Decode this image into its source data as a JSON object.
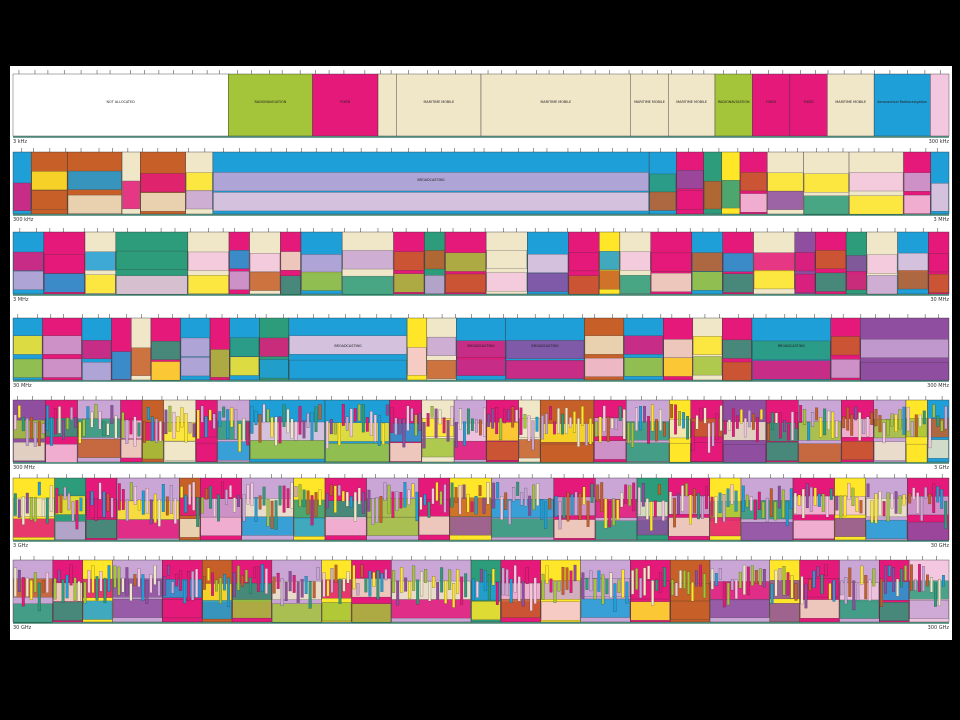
{
  "chart_data": {
    "type": "bar",
    "colors": {
      "FIXED": "#e5197a",
      "MOBILE": "#f0e6c8",
      "MARITIME MOBILE": "#1f9fd7",
      "AERONAUTICAL MOBILE": "#c65f28",
      "BROADCASTING": "#ffe629",
      "RADIONAVIGATION": "#a4c43a",
      "AMATEUR": "#2d9c7a",
      "MOBILE SATELLITE": "#c9a6d6",
      "SPACE RESEARCH": "#8f4ea0",
      "OTHER": "#f4c7e0"
    },
    "rows": [
      {
        "start_label": "3 kHz",
        "end_label": "300 kHz",
        "bands": [
          {
            "label": "NOT ALLOCATED",
            "service": "NONE",
            "width": 23
          },
          {
            "label": "RADIONAVIGATION",
            "service": "RADIONAVIGATION",
            "width": 9
          },
          {
            "label": "FIXED",
            "service": "FIXED",
            "width": 7
          },
          {
            "label": "MARITIME MOBILE",
            "service": "MOBILE",
            "width": 2
          },
          {
            "label": "MARITIME MOBILE",
            "service": "MOBILE",
            "width": 9
          },
          {
            "label": "MARITIME MOBILE",
            "service": "MOBILE",
            "width": 16
          },
          {
            "label": "MARITIME MOBILE",
            "service": "MOBILE",
            "width": 4
          },
          {
            "label": "MARITIME MOBILE",
            "service": "MOBILE",
            "width": 5
          },
          {
            "label": "RADIONAVIGATION",
            "service": "RADIONAVIGATION",
            "width": 4
          },
          {
            "label": "FIXED",
            "service": "FIXED",
            "width": 4
          },
          {
            "label": "FIXED",
            "service": "FIXED",
            "width": 4
          },
          {
            "label": "MARITIME MOBILE",
            "service": "MOBILE",
            "width": 5
          },
          {
            "label": "Aeronautical Radionavigation",
            "service": "MARITIME MOBILE",
            "width": 6
          },
          {
            "label": "",
            "service": "OTHER",
            "width": 2
          }
        ]
      },
      {
        "start_label": "300 kHz",
        "end_label": "3 MHz",
        "bands": [
          {
            "label": "",
            "service": "MARITIME MOBILE",
            "width": 2
          },
          {
            "label": "",
            "service": "AERONAUTICAL MOBILE",
            "width": 4
          },
          {
            "label": "",
            "service": "AERONAUTICAL MOBILE",
            "width": 6
          },
          {
            "label": "",
            "service": "MOBILE",
            "width": 2
          },
          {
            "label": "",
            "service": "AERONAUTICAL MOBILE",
            "width": 5
          },
          {
            "label": "",
            "service": "MOBILE",
            "width": 3
          },
          {
            "label": "BROADCASTING",
            "service": "MARITIME MOBILE",
            "width": 48
          },
          {
            "label": "",
            "service": "MARITIME MOBILE",
            "width": 3
          },
          {
            "label": "",
            "service": "FIXED",
            "width": 3
          },
          {
            "label": "",
            "service": "AMATEUR",
            "width": 2
          },
          {
            "label": "",
            "service": "BROADCASTING",
            "width": 2
          },
          {
            "label": "",
            "service": "FIXED",
            "width": 3
          },
          {
            "label": "",
            "service": "MOBILE",
            "width": 4
          },
          {
            "label": "",
            "service": "MOBILE",
            "width": 5
          },
          {
            "label": "",
            "service": "MOBILE",
            "width": 6
          },
          {
            "label": "",
            "service": "FIXED",
            "width": 3
          },
          {
            "label": "",
            "service": "MARITIME MOBILE",
            "width": 2
          }
        ]
      },
      {
        "start_label": "3 MHz",
        "end_label": "30 MHz",
        "bands": [
          {
            "label": "",
            "service": "MARITIME MOBILE",
            "width": 3
          },
          {
            "label": "",
            "service": "FIXED",
            "width": 4
          },
          {
            "label": "",
            "service": "MOBILE",
            "width": 3
          },
          {
            "label": "",
            "service": "AMATEUR",
            "width": 7
          },
          {
            "label": "",
            "service": "MOBILE",
            "width": 4
          },
          {
            "label": "",
            "service": "FIXED",
            "width": 2
          },
          {
            "label": "",
            "service": "MOBILE",
            "width": 3
          },
          {
            "label": "",
            "service": "FIXED",
            "width": 2
          },
          {
            "label": "",
            "service": "MARITIME MOBILE",
            "width": 4
          },
          {
            "label": "",
            "service": "MOBILE",
            "width": 5
          },
          {
            "label": "",
            "service": "FIXED",
            "width": 3
          },
          {
            "label": "",
            "service": "AMATEUR",
            "width": 2
          },
          {
            "label": "",
            "service": "FIXED",
            "width": 4
          },
          {
            "label": "",
            "service": "MOBILE",
            "width": 4
          },
          {
            "label": "",
            "service": "MARITIME MOBILE",
            "width": 4
          },
          {
            "label": "",
            "service": "FIXED",
            "width": 3
          },
          {
            "label": "",
            "service": "BROADCASTING",
            "width": 2
          },
          {
            "label": "",
            "service": "MOBILE",
            "width": 3
          },
          {
            "label": "",
            "service": "FIXED",
            "width": 4
          },
          {
            "label": "",
            "service": "MARITIME MOBILE",
            "width": 3
          },
          {
            "label": "",
            "service": "FIXED",
            "width": 3
          },
          {
            "label": "",
            "service": "MOBILE",
            "width": 4
          },
          {
            "label": "",
            "service": "SPACE RESEARCH",
            "width": 2
          },
          {
            "label": "",
            "service": "FIXED",
            "width": 3
          },
          {
            "label": "",
            "service": "AMATEUR",
            "width": 2
          },
          {
            "label": "",
            "service": "MOBILE",
            "width": 3
          },
          {
            "label": "",
            "service": "MARITIME MOBILE",
            "width": 3
          },
          {
            "label": "",
            "service": "FIXED",
            "width": 2
          }
        ]
      },
      {
        "start_label": "30 MHz",
        "end_label": "300 MHz",
        "bands": [
          {
            "label": "",
            "service": "MARITIME MOBILE",
            "width": 3
          },
          {
            "label": "",
            "service": "FIXED",
            "width": 4
          },
          {
            "label": "",
            "service": "MARITIME MOBILE",
            "width": 3
          },
          {
            "label": "",
            "service": "FIXED",
            "width": 2
          },
          {
            "label": "",
            "service": "MOBILE",
            "width": 2
          },
          {
            "label": "",
            "service": "FIXED",
            "width": 3
          },
          {
            "label": "",
            "service": "MARITIME MOBILE",
            "width": 3
          },
          {
            "label": "",
            "service": "FIXED",
            "width": 2
          },
          {
            "label": "",
            "service": "MARITIME MOBILE",
            "width": 3
          },
          {
            "label": "",
            "service": "AMATEUR",
            "width": 3
          },
          {
            "label": "BROADCASTING",
            "service": "MARITIME MOBILE",
            "width": 12
          },
          {
            "label": "",
            "service": "BROADCASTING",
            "width": 2
          },
          {
            "label": "",
            "service": "MOBILE",
            "width": 3
          },
          {
            "label": "BROADCASTING",
            "service": "MARITIME MOBILE",
            "width": 5
          },
          {
            "label": "BROADCASTING",
            "service": "MARITIME MOBILE",
            "width": 8
          },
          {
            "label": "",
            "service": "AERONAUTICAL MOBILE",
            "width": 4
          },
          {
            "label": "",
            "service": "MARITIME MOBILE",
            "width": 4
          },
          {
            "label": "",
            "service": "FIXED",
            "width": 3
          },
          {
            "label": "",
            "service": "MOBILE",
            "width": 3
          },
          {
            "label": "",
            "service": "FIXED",
            "width": 3
          },
          {
            "label": "BROADCASTING",
            "service": "MARITIME MOBILE",
            "width": 8
          },
          {
            "label": "",
            "service": "FIXED",
            "width": 3
          },
          {
            "label": "",
            "service": "SPACE RESEARCH",
            "width": 9
          }
        ]
      },
      {
        "start_label": "300 MHz",
        "end_label": "3 GHz",
        "bands": [
          {
            "label": "",
            "service": "SPACE RESEARCH",
            "width": 3
          },
          {
            "label": "",
            "service": "FIXED",
            "width": 3
          },
          {
            "label": "",
            "service": "MOBILE SATELLITE",
            "width": 4
          },
          {
            "label": "",
            "service": "FIXED",
            "width": 2
          },
          {
            "label": "",
            "service": "AERONAUTICAL MOBILE",
            "width": 2
          },
          {
            "label": "",
            "service": "MOBILE",
            "width": 3
          },
          {
            "label": "",
            "service": "FIXED",
            "width": 2
          },
          {
            "label": "",
            "service": "MOBILE SATELLITE",
            "width": 3
          },
          {
            "label": "",
            "service": "MARITIME MOBILE",
            "width": 7
          },
          {
            "label": "",
            "service": "MARITIME MOBILE",
            "width": 6
          },
          {
            "label": "",
            "service": "FIXED",
            "width": 3
          },
          {
            "label": "",
            "service": "MOBILE",
            "width": 3
          },
          {
            "label": "",
            "service": "MOBILE SATELLITE",
            "width": 3
          },
          {
            "label": "",
            "service": "FIXED",
            "width": 3
          },
          {
            "label": "",
            "service": "MOBILE",
            "width": 2
          },
          {
            "label": "",
            "service": "AERONAUTICAL MOBILE",
            "width": 5
          },
          {
            "label": "",
            "service": "FIXED",
            "width": 3
          },
          {
            "label": "",
            "service": "MOBILE SATELLITE",
            "width": 4
          },
          {
            "label": "",
            "service": "BROADCASTING",
            "width": 2
          },
          {
            "label": "",
            "service": "FIXED",
            "width": 3
          },
          {
            "label": "",
            "service": "SPACE RESEARCH",
            "width": 4
          },
          {
            "label": "",
            "service": "FIXED",
            "width": 3
          },
          {
            "label": "",
            "service": "MOBILE SATELLITE",
            "width": 4
          },
          {
            "label": "",
            "service": "FIXED",
            "width": 3
          },
          {
            "label": "",
            "service": "MOBILE SATELLITE",
            "width": 3
          },
          {
            "label": "",
            "service": "BROADCASTING",
            "width": 2
          },
          {
            "label": "",
            "service": "MARITIME MOBILE",
            "width": 2
          }
        ]
      },
      {
        "start_label": "3 GHz",
        "end_label": "30 GHz",
        "bands": [
          {
            "label": "",
            "service": "BROADCASTING",
            "width": 4
          },
          {
            "label": "",
            "service": "AMATEUR",
            "width": 3
          },
          {
            "label": "",
            "service": "FIXED",
            "width": 3
          },
          {
            "label": "",
            "service": "MOBILE SATELLITE",
            "width": 6
          },
          {
            "label": "",
            "service": "AERONAUTICAL MOBILE",
            "width": 2
          },
          {
            "label": "",
            "service": "FIXED",
            "width": 4
          },
          {
            "label": "",
            "service": "MOBILE SATELLITE",
            "width": 5
          },
          {
            "label": "",
            "service": "BROADCASTING",
            "width": 3
          },
          {
            "label": "",
            "service": "FIXED",
            "width": 4
          },
          {
            "label": "",
            "service": "MOBILE SATELLITE",
            "width": 5
          },
          {
            "label": "",
            "service": "FIXED",
            "width": 3
          },
          {
            "label": "",
            "service": "BROADCASTING",
            "width": 4
          },
          {
            "label": "",
            "service": "MOBILE SATELLITE",
            "width": 6
          },
          {
            "label": "",
            "service": "FIXED",
            "width": 4
          },
          {
            "label": "",
            "service": "MOBILE SATELLITE",
            "width": 4
          },
          {
            "label": "",
            "service": "AMATEUR",
            "width": 3
          },
          {
            "label": "",
            "service": "FIXED",
            "width": 4
          },
          {
            "label": "",
            "service": "BROADCASTING",
            "width": 3
          },
          {
            "label": "",
            "service": "MOBILE SATELLITE",
            "width": 5
          },
          {
            "label": "",
            "service": "FIXED",
            "width": 4
          },
          {
            "label": "",
            "service": "BROADCASTING",
            "width": 3
          },
          {
            "label": "",
            "service": "MOBILE SATELLITE",
            "width": 4
          },
          {
            "label": "",
            "service": "FIXED",
            "width": 4
          }
        ]
      },
      {
        "start_label": "30 GHz",
        "end_label": "300 GHz",
        "bands": [
          {
            "label": "",
            "service": "MOBILE SATELLITE",
            "width": 4
          },
          {
            "label": "",
            "service": "FIXED",
            "width": 3
          },
          {
            "label": "",
            "service": "BROADCASTING",
            "width": 3
          },
          {
            "label": "",
            "service": "MOBILE SATELLITE",
            "width": 5
          },
          {
            "label": "",
            "service": "FIXED",
            "width": 4
          },
          {
            "label": "",
            "service": "AERONAUTICAL MOBILE",
            "width": 3
          },
          {
            "label": "",
            "service": "FIXED",
            "width": 4
          },
          {
            "label": "",
            "service": "MOBILE SATELLITE",
            "width": 5
          },
          {
            "label": "",
            "service": "BROADCASTING",
            "width": 3
          },
          {
            "label": "",
            "service": "FIXED",
            "width": 4
          },
          {
            "label": "",
            "service": "MOBILE SATELLITE",
            "width": 8
          },
          {
            "label": "",
            "service": "AMATEUR",
            "width": 3
          },
          {
            "label": "",
            "service": "FIXED",
            "width": 4
          },
          {
            "label": "",
            "service": "BROADCASTING",
            "width": 4
          },
          {
            "label": "",
            "service": "MOBILE SATELLITE",
            "width": 5
          },
          {
            "label": "",
            "service": "FIXED",
            "width": 4
          },
          {
            "label": "",
            "service": "AERONAUTICAL MOBILE",
            "width": 4
          },
          {
            "label": "",
            "service": "MOBILE SATELLITE",
            "width": 6
          },
          {
            "label": "",
            "service": "BROADCASTING",
            "width": 3
          },
          {
            "label": "",
            "service": "FIXED",
            "width": 4
          },
          {
            "label": "",
            "service": "MOBILE SATELLITE",
            "width": 4
          },
          {
            "label": "",
            "service": "FIXED",
            "width": 3
          },
          {
            "label": "",
            "service": "OTHER",
            "width": 4
          }
        ]
      }
    ]
  }
}
